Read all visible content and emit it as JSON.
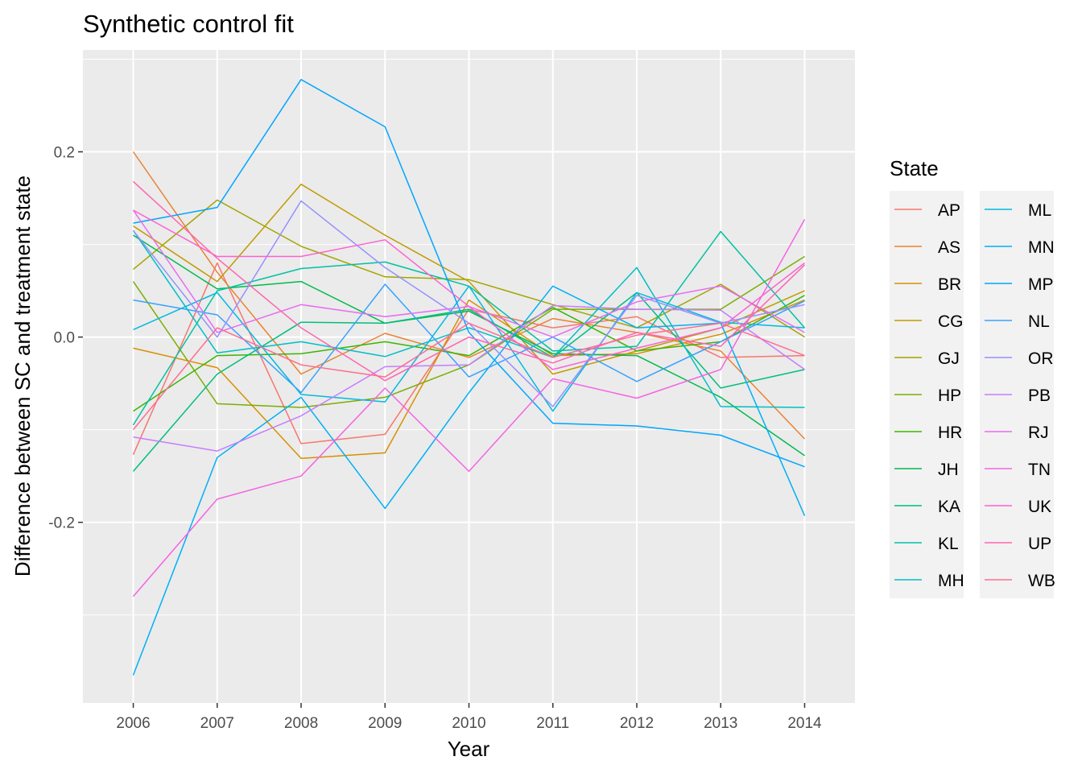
{
  "chart_data": {
    "type": "line",
    "title": "Synthetic control fit",
    "xlabel": "Year",
    "ylabel": "Difference between SC and treatment state",
    "x": [
      2006,
      2007,
      2008,
      2009,
      2010,
      2011,
      2012,
      2013,
      2014
    ],
    "xlim": [
      2005.4,
      2014.6
    ],
    "ylim": [
      -0.395,
      0.31
    ],
    "yticks": [
      -0.2,
      0.0,
      0.2
    ],
    "ytick_labels": [
      "-0.2",
      "0.0",
      "0.2"
    ],
    "grid": true,
    "legend": {
      "title": "State",
      "position": "right",
      "columns": 2
    },
    "series": [
      {
        "name": "AP",
        "color": "#F8766D",
        "values": [
          -0.127,
          0.08,
          -0.115,
          -0.105,
          0.03,
          0.01,
          0.022,
          -0.022,
          -0.02
        ]
      },
      {
        "name": "AS",
        "color": "#EA8331",
        "values": [
          0.2,
          0.07,
          -0.04,
          0.004,
          -0.022,
          0.02,
          0.005,
          -0.015,
          -0.11
        ]
      },
      {
        "name": "BR",
        "color": "#D89000",
        "values": [
          -0.012,
          -0.033,
          -0.131,
          -0.125,
          0.04,
          -0.02,
          -0.018,
          0.003,
          0.04
        ]
      },
      {
        "name": "CG",
        "color": "#C09B00",
        "values": [
          0.12,
          0.06,
          0.165,
          0.11,
          0.06,
          -0.04,
          -0.015,
          0.01,
          0.05
        ]
      },
      {
        "name": "GJ",
        "color": "#A3A500",
        "values": [
          0.073,
          0.148,
          0.098,
          0.065,
          0.062,
          0.035,
          0.01,
          0.057,
          0.0
        ]
      },
      {
        "name": "HP",
        "color": "#7CAE00",
        "values": [
          0.06,
          -0.072,
          -0.076,
          -0.065,
          -0.03,
          0.03,
          0.03,
          0.03,
          0.087
        ]
      },
      {
        "name": "HR",
        "color": "#39B600",
        "values": [
          -0.08,
          -0.02,
          -0.018,
          -0.005,
          -0.02,
          0.032,
          -0.015,
          -0.005,
          0.045
        ]
      },
      {
        "name": "JH",
        "color": "#00BB4E",
        "values": [
          0.11,
          0.052,
          0.06,
          0.015,
          0.028,
          -0.018,
          -0.02,
          -0.065,
          -0.128
        ]
      },
      {
        "name": "KA",
        "color": "#00BF7D",
        "values": [
          -0.145,
          -0.04,
          0.016,
          0.015,
          0.03,
          -0.022,
          0.048,
          -0.055,
          -0.035
        ]
      },
      {
        "name": "KL",
        "color": "#00C1A3",
        "values": [
          -0.095,
          0.05,
          0.074,
          0.081,
          0.055,
          -0.015,
          -0.01,
          0.114,
          0.01
        ]
      },
      {
        "name": "MH",
        "color": "#00BFC4",
        "values": [
          0.115,
          -0.017,
          -0.005,
          -0.021,
          0.01,
          -0.022,
          0.075,
          -0.075,
          -0.076
        ]
      },
      {
        "name": "ML",
        "color": "#00BAE0",
        "values": [
          0.008,
          0.048,
          -0.062,
          -0.07,
          0.055,
          -0.08,
          0.048,
          0.016,
          0.01
        ]
      },
      {
        "name": "MN",
        "color": "#00B0F6",
        "values": [
          -0.365,
          -0.13,
          -0.065,
          -0.185,
          -0.06,
          0.055,
          0.01,
          0.015,
          -0.193
        ]
      },
      {
        "name": "MP",
        "color": "#00A5FF",
        "values": [
          0.123,
          0.14,
          0.278,
          0.227,
          0.005,
          -0.093,
          -0.096,
          -0.106,
          -0.14
        ]
      },
      {
        "name": "NL",
        "color": "#35A2FF",
        "values": [
          0.04,
          0.024,
          -0.06,
          0.057,
          -0.043,
          0.0,
          -0.048,
          -0.005,
          0.039
        ]
      },
      {
        "name": "OR",
        "color": "#9590FF",
        "values": [
          0.115,
          0.0,
          0.147,
          0.075,
          0.015,
          -0.075,
          0.045,
          0.015,
          0.035
        ]
      },
      {
        "name": "PB",
        "color": "#C77CFF",
        "values": [
          -0.108,
          -0.123,
          -0.085,
          -0.032,
          -0.03,
          0.034,
          0.03,
          0.029,
          -0.035
        ]
      },
      {
        "name": "RJ",
        "color": "#E76BF3",
        "values": [
          0.137,
          0.005,
          0.035,
          0.022,
          0.033,
          0.0,
          0.038,
          0.055,
          0.005
        ]
      },
      {
        "name": "TN",
        "color": "#F564E3",
        "values": [
          -0.28,
          -0.175,
          -0.15,
          -0.055,
          -0.145,
          -0.045,
          -0.066,
          -0.035,
          0.127
        ]
      },
      {
        "name": "UK",
        "color": "#FD61D1",
        "values": [
          0.137,
          0.087,
          0.087,
          0.105,
          0.033,
          -0.035,
          -0.012,
          0.01,
          0.08
        ]
      },
      {
        "name": "UP",
        "color": "#FF64B0",
        "values": [
          0.168,
          0.085,
          0.01,
          -0.047,
          0.0,
          -0.028,
          0.005,
          -0.01,
          0.078
        ]
      },
      {
        "name": "WB",
        "color": "#FF6C91",
        "values": [
          -0.1,
          0.01,
          -0.03,
          -0.043,
          0.015,
          -0.022,
          0.002,
          0.015,
          -0.02
        ]
      }
    ]
  }
}
